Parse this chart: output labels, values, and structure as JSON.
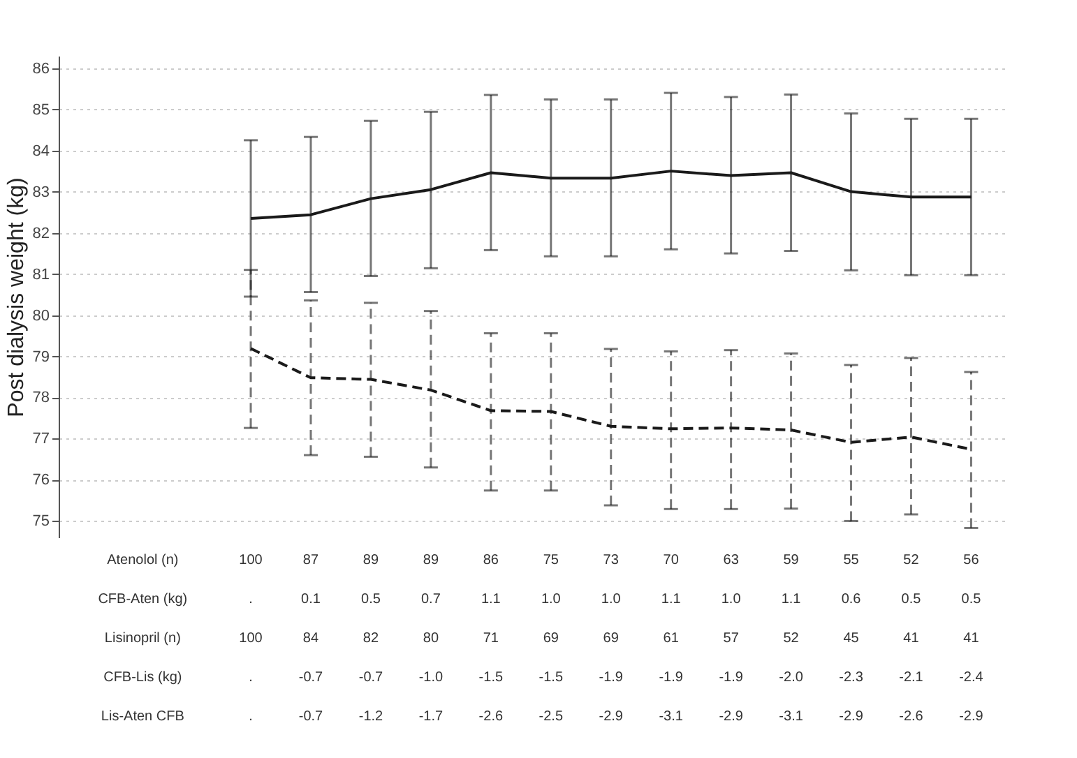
{
  "chart_data": {
    "type": "line",
    "categories": [
      null,
      null,
      null,
      null,
      null,
      null,
      null,
      null,
      null,
      null,
      null,
      null,
      null
    ],
    "ylabel": "Post dialysis weight (kg)",
    "ylim": [
      74.6,
      86.3
    ],
    "yticks": [
      75,
      76,
      77,
      78,
      79,
      80,
      81,
      82,
      83,
      84,
      85,
      86
    ],
    "grid": "y",
    "marker": "none",
    "tick_labels": "y",
    "series": [
      {
        "color": "#1a1a1a",
        "line_style": "solid",
        "values": [
          82.35,
          82.44,
          82.83,
          83.05,
          83.46,
          83.33,
          83.33,
          83.5,
          83.39,
          83.46,
          83.0,
          82.87,
          82.87
        ],
        "errors": [
          [
            80.45,
            84.25
          ],
          [
            80.56,
            84.33
          ],
          [
            80.95,
            84.72
          ],
          [
            81.14,
            84.94
          ],
          [
            81.58,
            85.35
          ],
          [
            81.43,
            85.24
          ],
          [
            81.43,
            85.24
          ],
          [
            81.6,
            85.4
          ],
          [
            81.5,
            85.3
          ],
          [
            81.56,
            85.36
          ],
          [
            81.09,
            84.9
          ],
          [
            80.97,
            84.77
          ],
          [
            80.97,
            84.77
          ]
        ]
      },
      {
        "color": "#1a1a1a",
        "line_style": "dashed",
        "values": [
          79.19,
          78.48,
          78.44,
          78.18,
          77.68,
          77.66,
          77.3,
          77.24,
          77.26,
          77.21,
          76.91,
          77.04,
          76.74
        ],
        "errors": [
          [
            77.26,
            81.1
          ],
          [
            76.6,
            80.36
          ],
          [
            76.56,
            80.3
          ],
          [
            76.3,
            80.1
          ],
          [
            75.74,
            79.56
          ],
          [
            75.74,
            79.56
          ],
          [
            75.38,
            79.18
          ],
          [
            75.29,
            79.12
          ],
          [
            75.29,
            79.15
          ],
          [
            75.3,
            79.07
          ],
          [
            75.0,
            78.79
          ],
          [
            75.16,
            78.96
          ],
          [
            74.83,
            78.62
          ]
        ]
      }
    ],
    "annotations": [
      "Atenolol (n)",
      "100",
      "87",
      "89",
      "89",
      "86",
      "75",
      "73",
      "70",
      "63",
      "59",
      "55",
      "52",
      "56",
      "CFB-Aten (kg)",
      ".",
      "0.1",
      "0.5",
      "0.7",
      "1.1",
      "1.0",
      "1.0",
      "1.1",
      "1.0",
      "1.1",
      "0.6",
      "0.5",
      "0.5",
      "Lisinopril (n)",
      "100",
      "84",
      "82",
      "80",
      "71",
      "69",
      "69",
      "61",
      "57",
      "52",
      "45",
      "41",
      "41",
      "CFB-Lis (kg)",
      ".",
      "-0.7",
      "-0.7",
      "-1.0",
      "-1.5",
      "-1.5",
      "-1.9",
      "-1.9",
      "-1.9",
      "-2.0",
      "-2.3",
      "-2.1",
      "-2.4",
      "Lis-Aten CFB",
      ".",
      "-0.7",
      "-1.2",
      "-1.7",
      "-2.6",
      "-2.5",
      "-2.9",
      "-3.1",
      "-2.9",
      "-3.1",
      "-2.9",
      "-2.6",
      "-2.9"
    ]
  }
}
